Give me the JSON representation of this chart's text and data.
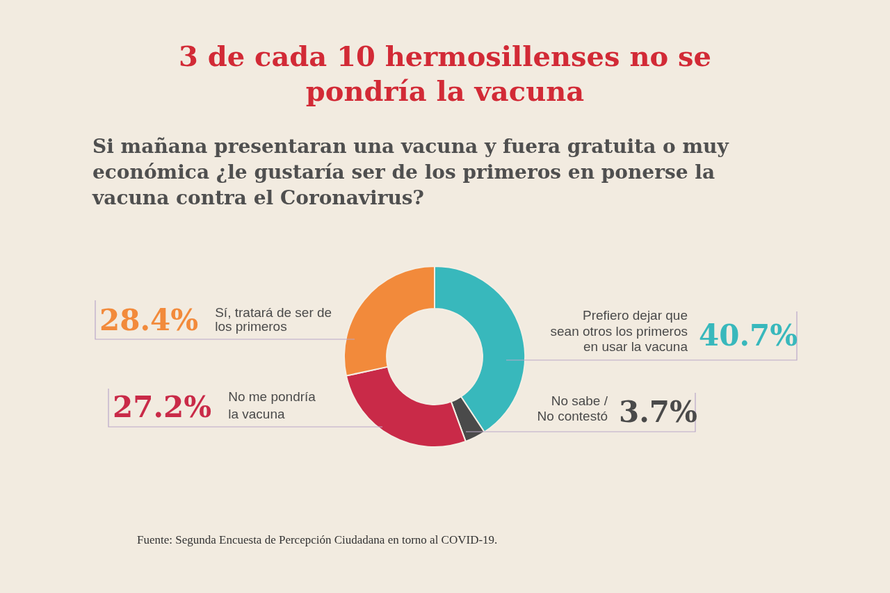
{
  "chart_data": {
    "type": "donut",
    "title": "3 de cada 10 hermosillenses no se pondría la vacuna",
    "subtitle": "Si mañana presentaran una vacuna y fuera gratuita o muy económica ¿le gustaría ser de los primeros en ponerse la vacuna contra el Coronavirus?",
    "categories": [
      "Prefiero dejar que\nsean otros los primeros\nen usar la vacuna",
      "No sabe /\nNo contestó",
      "No me pondría\nla vacuna",
      "Sí, tratará de ser de\nlos primeros"
    ],
    "values": [
      40.7,
      3.7,
      27.2,
      28.4
    ],
    "colors": [
      "#38b8bc",
      "#4a4a4a",
      "#c92a48",
      "#f28a3b"
    ],
    "value_labels": [
      "40.7%",
      "3.7%",
      "27.2%",
      "28.4%"
    ],
    "annotations": [
      "Fuente: Segunda Encuesta de Percepción Ciudadana en torno al COVID-19."
    ]
  }
}
